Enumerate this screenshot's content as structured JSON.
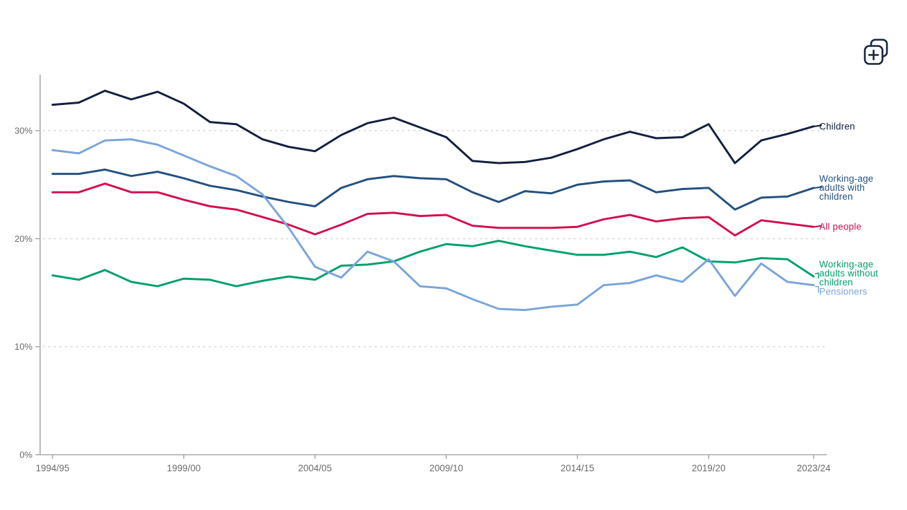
{
  "page": {
    "background": "#ffffff"
  },
  "icons": {
    "top_right": {
      "name": "copy-plus-icon"
    }
  },
  "chart_data": {
    "type": "line",
    "title": "",
    "xlabel": "",
    "ylabel": "",
    "ylim": [
      0,
      35
    ],
    "grid": "horizontal-dashed",
    "legend_position": "end-of-line-labels",
    "categories": [
      "1994/95",
      "1995/96",
      "1996/97",
      "1997/98",
      "1998/99",
      "1999/00",
      "2000/01",
      "2001/02",
      "2002/03",
      "2003/04",
      "2004/05",
      "2005/06",
      "2006/07",
      "2007/08",
      "2008/09",
      "2009/10",
      "2010/11",
      "2011/12",
      "2012/13",
      "2013/14",
      "2014/15",
      "2015/16",
      "2016/17",
      "2017/18",
      "2018/19",
      "2019/20",
      "2020/21",
      "2021/22",
      "2022/23",
      "2023/24"
    ],
    "x_axis_tick_labels": [
      {
        "index": 0,
        "label": "1994/95"
      },
      {
        "index": 5,
        "label": "1999/00"
      },
      {
        "index": 10,
        "label": "2004/05"
      },
      {
        "index": 15,
        "label": "2009/10"
      },
      {
        "index": 20,
        "label": "2014/15"
      },
      {
        "index": 25,
        "label": "2019/20"
      },
      {
        "index": 29,
        "label": "2023/24"
      }
    ],
    "y_axis_tick_labels": [
      {
        "value": 0,
        "label": "0%"
      },
      {
        "value": 10,
        "label": "10%"
      },
      {
        "value": 20,
        "label": "20%"
      },
      {
        "value": 30,
        "label": "30%"
      }
    ],
    "series": [
      {
        "name": "Children",
        "color": "#13203f",
        "label_lines": [
          "Children"
        ],
        "values": [
          32.4,
          32.6,
          33.7,
          32.9,
          33.6,
          32.5,
          30.8,
          30.6,
          29.2,
          28.5,
          28.1,
          29.6,
          30.7,
          31.2,
          30.3,
          29.4,
          27.2,
          27.0,
          27.1,
          27.5,
          28.3,
          29.2,
          29.9,
          29.3,
          29.4,
          30.6,
          27.0,
          29.1,
          29.7,
          30.4
        ]
      },
      {
        "name": "Working-age adults with children",
        "color": "#24517f",
        "label_lines": [
          "Working-age",
          "adults with",
          "children"
        ],
        "values": [
          26.0,
          26.0,
          26.4,
          25.8,
          26.2,
          25.6,
          24.9,
          24.5,
          23.9,
          23.4,
          23.0,
          24.7,
          25.5,
          25.8,
          25.6,
          25.5,
          24.3,
          23.4,
          24.4,
          24.2,
          25.0,
          25.3,
          25.4,
          24.3,
          24.6,
          24.7,
          22.7,
          23.8,
          23.9,
          24.7
        ]
      },
      {
        "name": "All people",
        "color": "#d1114e",
        "label_lines": [
          "All people"
        ],
        "values": [
          24.3,
          24.3,
          25.1,
          24.3,
          24.3,
          23.6,
          23.0,
          22.7,
          22.0,
          21.3,
          20.4,
          21.3,
          22.3,
          22.4,
          22.1,
          22.2,
          21.2,
          21.0,
          21.0,
          21.0,
          21.1,
          21.8,
          22.2,
          21.6,
          21.9,
          22.0,
          20.3,
          21.7,
          21.4,
          21.1
        ]
      },
      {
        "name": "Working-age adults without children",
        "color": "#00a06e",
        "label_lines": [
          "Working-age",
          "adults without",
          "children"
        ],
        "values": [
          16.6,
          16.2,
          17.1,
          16.0,
          15.6,
          16.3,
          16.2,
          15.6,
          16.1,
          16.5,
          16.2,
          17.5,
          17.6,
          17.9,
          18.8,
          19.5,
          19.3,
          19.8,
          19.3,
          18.9,
          18.5,
          18.5,
          18.8,
          18.3,
          19.2,
          17.9,
          17.8,
          18.2,
          18.1,
          16.5
        ]
      },
      {
        "name": "Pensioners",
        "color": "#7aa5da",
        "label_lines": [
          "Pensioners"
        ],
        "values": [
          28.2,
          27.9,
          29.1,
          29.2,
          28.7,
          27.7,
          26.7,
          25.8,
          24.1,
          21.0,
          17.4,
          16.4,
          18.8,
          17.9,
          15.6,
          15.4,
          14.4,
          13.5,
          13.4,
          13.7,
          13.9,
          15.7,
          15.9,
          16.6,
          16.0,
          18.1,
          14.7,
          17.7,
          16.0,
          15.7
        ]
      }
    ],
    "colors": {
      "axis": "#a8a8a8",
      "grid": "#d9d9d9",
      "tick_text": "#6b6b6b",
      "background": "#ffffff",
      "icon": "#16243f"
    }
  }
}
